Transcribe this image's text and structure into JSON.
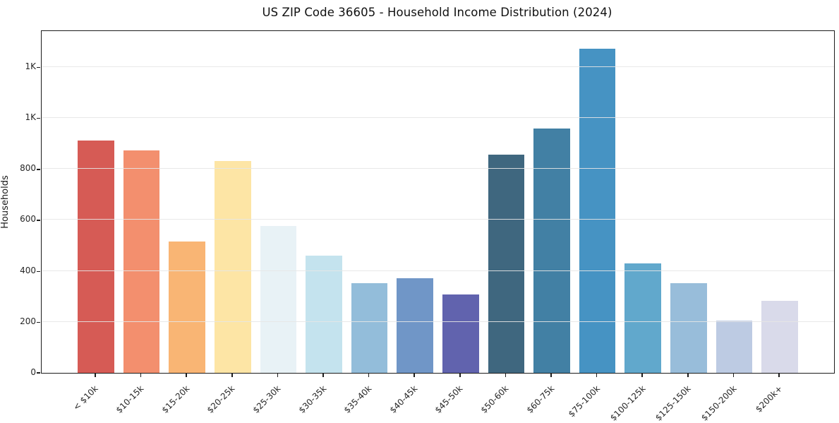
{
  "chart_data": {
    "type": "bar",
    "title": "US ZIP Code 36605 - Household Income Distribution (2024)",
    "xlabel": "",
    "ylabel": "Households",
    "categories": [
      "< $10k",
      "$10-15k",
      "$15-20k",
      "$20-25k",
      "$25-30k",
      "$30-35k",
      "$35-40k",
      "$40-45k",
      "$45-50k",
      "$50-60k",
      "$60-75k",
      "$75-100k",
      "$100-125k",
      "$125-150k",
      "$150-200k",
      "$200k+"
    ],
    "values": [
      910,
      873,
      515,
      830,
      575,
      460,
      353,
      370,
      307,
      855,
      957,
      1270,
      430,
      352,
      205,
      282
    ],
    "bar_colors": [
      "#d4544e",
      "#f28a68",
      "#f9b26e",
      "#fde4a1",
      "#e7f1f6",
      "#c2e2ed",
      "#8fbad8",
      "#6a92c5",
      "#5b5dab",
      "#37617a",
      "#3a7ba0",
      "#3e8fc1",
      "#5ba4ca",
      "#94bad8",
      "#bac9e2",
      "#d7d9e9"
    ],
    "ylim": [
      0,
      1340
    ],
    "yticks": [
      0,
      200,
      400,
      600,
      800,
      1000,
      1200
    ],
    "ytick_labels": [
      "0",
      "200",
      "400",
      "600",
      "800",
      "1K",
      "1K"
    ],
    "grid": "horizontal",
    "grid_color": "#e5e5e5",
    "legend": "none",
    "x_tick_rotation": 45,
    "frame": "full-box"
  }
}
